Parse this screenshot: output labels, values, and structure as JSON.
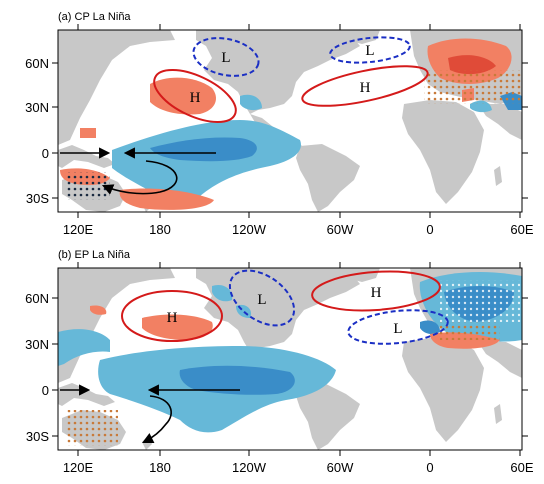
{
  "panels": [
    {
      "title": "(a)  CP La Niña",
      "lat_ticks": [
        "60N",
        "30N",
        "0",
        "30S"
      ],
      "lon_ticks": [
        "120E",
        "180",
        "120W",
        "60W",
        "0",
        "60E"
      ],
      "systems": [
        {
          "symbol": "L",
          "type": "low",
          "color": "#1b2fc4"
        },
        {
          "symbol": "L",
          "type": "low",
          "color": "#1b2fc4"
        },
        {
          "symbol": "H",
          "type": "high",
          "color": "#d41a1a"
        },
        {
          "symbol": "H",
          "type": "high",
          "color": "#d41a1a"
        }
      ]
    },
    {
      "title": "(b)  EP La Niña",
      "lat_ticks": [
        "60N",
        "30N",
        "0",
        "30S"
      ],
      "lon_ticks": [
        "120E",
        "180",
        "120W",
        "60W",
        "0",
        "60E"
      ],
      "systems": [
        {
          "symbol": "H",
          "type": "high",
          "color": "#d41a1a"
        },
        {
          "symbol": "L",
          "type": "low",
          "color": "#1b2fc4"
        },
        {
          "symbol": "H",
          "type": "high",
          "color": "#d41a1a"
        },
        {
          "symbol": "L",
          "type": "low",
          "color": "#1b2fc4"
        }
      ]
    }
  ],
  "colors": {
    "land": "#c8c8c8",
    "ocean": "#ffffff",
    "positive_anomaly": "#f28063",
    "positive_strong": "#e04b38",
    "negative_anomaly": "#66b8d8",
    "negative_strong": "#3a8dc8",
    "high_contour": "#d41a1a",
    "low_contour": "#1b2fc4",
    "flow_arrow": "#000000"
  }
}
